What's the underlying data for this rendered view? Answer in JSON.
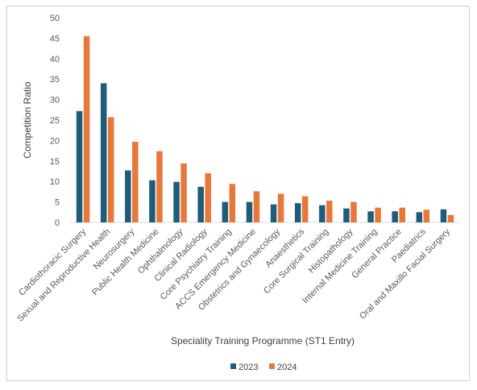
{
  "chart_data": {
    "type": "bar",
    "title": "",
    "xlabel": "Speciality Training Programme (ST1 Entry)",
    "ylabel": "Competition Ratio",
    "ylim": [
      0,
      50
    ],
    "yticks": [
      0,
      5,
      10,
      15,
      20,
      25,
      30,
      35,
      40,
      45,
      50
    ],
    "grid": false,
    "legend_position": "bottom",
    "categories": [
      "Cardiothoracic Surgery",
      "Sexual and Reproductive Health",
      "Neurosurgery",
      "Public Health Medicine",
      "Ophthalmology",
      "Clinical Radiology",
      "Core Psychiatry Training",
      "ACCS Emergency Medicine",
      "Obstetrics and Gynaecology",
      "Anaesthetics",
      "Core Surgical Training",
      "Histopathology",
      "Internal Medicine Training",
      "General Practice",
      "Paediatrics",
      "Oral and Maxillo Facial Surgery"
    ],
    "series": [
      {
        "name": "2023",
        "color": "#1f5c7a",
        "values": [
          27.2,
          34.0,
          12.7,
          10.3,
          9.9,
          8.7,
          5.0,
          5.0,
          4.4,
          4.7,
          4.2,
          3.4,
          2.7,
          2.7,
          2.5,
          3.2
        ]
      },
      {
        "name": "2024",
        "color": "#e8783a",
        "values": [
          45.5,
          25.7,
          19.7,
          17.4,
          14.4,
          12.0,
          9.4,
          7.6,
          7.0,
          6.4,
          5.3,
          5.0,
          3.6,
          3.6,
          3.1,
          1.8
        ]
      }
    ]
  }
}
